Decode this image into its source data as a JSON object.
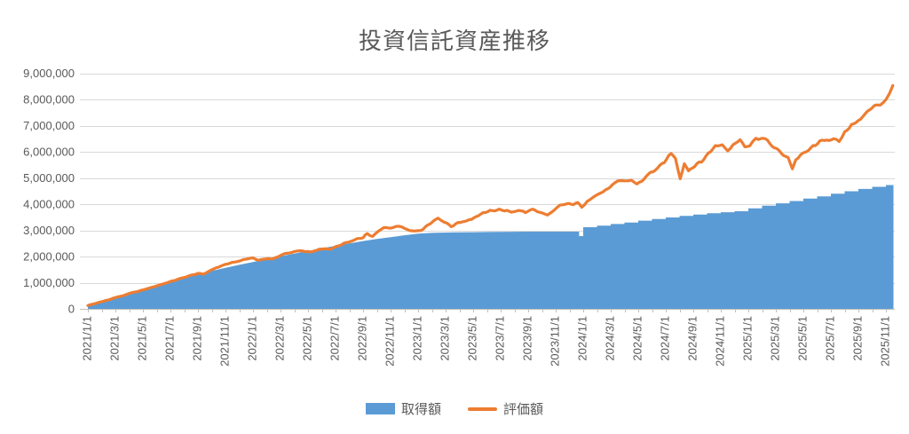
{
  "title": "投資信託資産推移",
  "colors": {
    "acquisition": "#5B9BD5",
    "valuation": "#ED7D31",
    "gridline": "#D9D9D9",
    "axis_line": "#BFBFBF",
    "text": "#595959"
  },
  "legend": {
    "acquisition_label": "取得額",
    "valuation_label": "評価額"
  },
  "chart_data": {
    "type": "bar",
    "subtype": "combo: gapless daily bars (取得額) + line (評価額)",
    "title": "投資信託資産推移",
    "xlabel": "",
    "ylabel": "",
    "ylim": [
      0,
      9000000
    ],
    "y_tick_step": 1000000,
    "y_tick_labels": [
      "0",
      "1,000,000",
      "2,000,000",
      "3,000,000",
      "4,000,000",
      "5,000,000",
      "6,000,000",
      "7,000,000",
      "8,000,000",
      "9,000,000"
    ],
    "x_tick_labels": [
      "2021/1/1",
      "2021/3/1",
      "2021/5/1",
      "2021/7/1",
      "2021/9/1",
      "2021/11/1",
      "2022/1/1",
      "2022/3/1",
      "2022/5/1",
      "2022/7/1",
      "2022/9/1",
      "2022/11/1",
      "2023/1/1",
      "2023/3/1",
      "2023/5/1",
      "2023/7/1",
      "2023/9/1",
      "2023/11/1",
      "2024/1/1",
      "2024/3/1",
      "2024/5/1",
      "2024/7/1",
      "2024/9/1",
      "2024/11/1",
      "2025/1/1",
      "2025/3/1",
      "2025/5/1",
      "2025/7/1",
      "2025/9/1",
      "2025/11/1"
    ],
    "x_unit": "months since 2021/1/1 (fractions = days within month)",
    "x_range": [
      0,
      58.55
    ],
    "grid": "horizontal only",
    "legend_position": "bottom center",
    "series": [
      {
        "name": "取得額",
        "type": "bar-area",
        "color": "#5B9BD5",
        "linear_until_month": 35,
        "points": [
          [
            0,
            140000
          ],
          [
            1,
            280000
          ],
          [
            2,
            430000
          ],
          [
            3,
            570000
          ],
          [
            4,
            710000
          ],
          [
            5,
            860000
          ],
          [
            6,
            1010000
          ],
          [
            7,
            1160000
          ],
          [
            8,
            1310000
          ],
          [
            9,
            1450000
          ],
          [
            10,
            1570000
          ],
          [
            11,
            1680000
          ],
          [
            12,
            1790000
          ],
          [
            13,
            1900000
          ],
          [
            14,
            2010000
          ],
          [
            15,
            2110000
          ],
          [
            16,
            2210000
          ],
          [
            17,
            2310000
          ],
          [
            18,
            2410000
          ],
          [
            19,
            2500000
          ],
          [
            20,
            2590000
          ],
          [
            21,
            2670000
          ],
          [
            22,
            2740000
          ],
          [
            23,
            2810000
          ],
          [
            24,
            2870000
          ],
          [
            25,
            2900000
          ],
          [
            26,
            2915000
          ],
          [
            27,
            2925000
          ],
          [
            28,
            2930000
          ],
          [
            29,
            2935000
          ],
          [
            30,
            2940000
          ],
          [
            31,
            2945000
          ],
          [
            32,
            2950000
          ],
          [
            33,
            2950000
          ],
          [
            34,
            2950000
          ],
          [
            35,
            2950000
          ],
          [
            35.7,
            2780000
          ],
          [
            36,
            3120000
          ],
          [
            37,
            3180000
          ],
          [
            38,
            3240000
          ],
          [
            39,
            3300000
          ],
          [
            40,
            3370000
          ],
          [
            41,
            3430000
          ],
          [
            42,
            3490000
          ],
          [
            43,
            3550000
          ],
          [
            44,
            3600000
          ],
          [
            45,
            3650000
          ],
          [
            46,
            3690000
          ],
          [
            47,
            3730000
          ],
          [
            48,
            3840000
          ],
          [
            49,
            3940000
          ],
          [
            50,
            4030000
          ],
          [
            51,
            4120000
          ],
          [
            52,
            4210000
          ],
          [
            53,
            4300000
          ],
          [
            54,
            4400000
          ],
          [
            55,
            4490000
          ],
          [
            56,
            4580000
          ],
          [
            57,
            4660000
          ],
          [
            58,
            4730000
          ]
        ]
      },
      {
        "name": "評価額",
        "type": "line",
        "color": "#ED7D31",
        "points": [
          [
            0,
            130000
          ],
          [
            0.5,
            200000
          ],
          [
            1,
            270000
          ],
          [
            1.5,
            350000
          ],
          [
            2,
            430000
          ],
          [
            2.5,
            500000
          ],
          [
            3,
            580000
          ],
          [
            3.5,
            650000
          ],
          [
            4,
            720000
          ],
          [
            4.5,
            800000
          ],
          [
            5,
            880000
          ],
          [
            5.5,
            960000
          ],
          [
            6,
            1040000
          ],
          [
            6.5,
            1120000
          ],
          [
            7,
            1200000
          ],
          [
            7.5,
            1280000
          ],
          [
            8,
            1350000
          ],
          [
            8.4,
            1320000
          ],
          [
            9,
            1500000
          ],
          [
            9.5,
            1600000
          ],
          [
            10,
            1700000
          ],
          [
            10.5,
            1760000
          ],
          [
            11,
            1830000
          ],
          [
            11.5,
            1900000
          ],
          [
            12,
            1950000
          ],
          [
            12.4,
            1860000
          ],
          [
            12.8,
            1910000
          ],
          [
            13.3,
            1900000
          ],
          [
            13.8,
            1990000
          ],
          [
            14.3,
            2100000
          ],
          [
            14.8,
            2160000
          ],
          [
            15.3,
            2230000
          ],
          [
            15.8,
            2180000
          ],
          [
            16.3,
            2170000
          ],
          [
            16.8,
            2280000
          ],
          [
            17.2,
            2310000
          ],
          [
            17.6,
            2270000
          ],
          [
            18.1,
            2380000
          ],
          [
            18.6,
            2490000
          ],
          [
            19.1,
            2570000
          ],
          [
            19.6,
            2660000
          ],
          [
            20,
            2720000
          ],
          [
            20.3,
            2870000
          ],
          [
            20.7,
            2760000
          ],
          [
            21.1,
            2950000
          ],
          [
            21.5,
            3090000
          ],
          [
            22,
            3100000
          ],
          [
            22.4,
            3170000
          ],
          [
            22.8,
            3120000
          ],
          [
            23.2,
            3060000
          ],
          [
            23.7,
            2970000
          ],
          [
            24.2,
            3010000
          ],
          [
            24.7,
            3200000
          ],
          [
            25.1,
            3360000
          ],
          [
            25.45,
            3470000
          ],
          [
            25.9,
            3330000
          ],
          [
            26.4,
            3150000
          ],
          [
            26.9,
            3290000
          ],
          [
            27.4,
            3360000
          ],
          [
            27.9,
            3440000
          ],
          [
            28.4,
            3570000
          ],
          [
            28.9,
            3680000
          ],
          [
            29.4,
            3760000
          ],
          [
            29.9,
            3800000
          ],
          [
            30.3,
            3740000
          ],
          [
            30.8,
            3700000
          ],
          [
            31.3,
            3780000
          ],
          [
            31.8,
            3680000
          ],
          [
            32.3,
            3800000
          ],
          [
            32.8,
            3700000
          ],
          [
            33.4,
            3550000
          ],
          [
            33.9,
            3750000
          ],
          [
            34.3,
            3960000
          ],
          [
            34.8,
            3990000
          ],
          [
            35.3,
            4010000
          ],
          [
            35.6,
            4040000
          ],
          [
            35.9,
            3880000
          ],
          [
            36.3,
            4150000
          ],
          [
            36.7,
            4290000
          ],
          [
            37.1,
            4380000
          ],
          [
            37.6,
            4520000
          ],
          [
            38.1,
            4700000
          ],
          [
            38.5,
            4840000
          ],
          [
            39,
            4890000
          ],
          [
            39.5,
            4900000
          ],
          [
            39.9,
            4780000
          ],
          [
            40.4,
            4940000
          ],
          [
            40.9,
            5220000
          ],
          [
            41.4,
            5340000
          ],
          [
            41.9,
            5600000
          ],
          [
            42.4,
            5950000
          ],
          [
            42.7,
            5750000
          ],
          [
            43.05,
            5000000
          ],
          [
            43.35,
            5570000
          ],
          [
            43.65,
            5290000
          ],
          [
            44.1,
            5480000
          ],
          [
            44.6,
            5620000
          ],
          [
            45.1,
            5950000
          ],
          [
            45.6,
            6210000
          ],
          [
            46.1,
            6280000
          ],
          [
            46.5,
            6060000
          ],
          [
            46.9,
            6320000
          ],
          [
            47.4,
            6440000
          ],
          [
            47.75,
            6250000
          ],
          [
            48.1,
            6210000
          ],
          [
            48.55,
            6480000
          ],
          [
            48.9,
            6530000
          ],
          [
            49.4,
            6400000
          ],
          [
            49.9,
            6150000
          ],
          [
            50.4,
            5950000
          ],
          [
            50.9,
            5780000
          ],
          [
            51.2,
            5350000
          ],
          [
            51.45,
            5700000
          ],
          [
            51.8,
            5850000
          ],
          [
            52.2,
            5980000
          ],
          [
            52.7,
            6200000
          ],
          [
            53.2,
            6350000
          ],
          [
            53.7,
            6500000
          ],
          [
            54.2,
            6450000
          ],
          [
            54.6,
            6370000
          ],
          [
            55,
            6700000
          ],
          [
            55.5,
            7050000
          ],
          [
            56,
            7220000
          ],
          [
            56.5,
            7400000
          ],
          [
            57,
            7680000
          ],
          [
            57.3,
            7820000
          ],
          [
            57.6,
            7750000
          ],
          [
            58,
            8050000
          ],
          [
            58.25,
            8250000
          ],
          [
            58.5,
            8530000
          ]
        ]
      }
    ]
  }
}
